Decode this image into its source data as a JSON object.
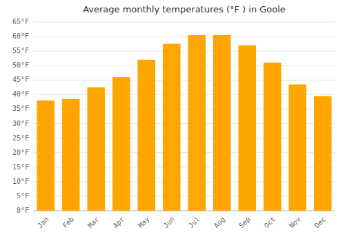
{
  "chart_data": {
    "type": "bar",
    "title": "Average monthly temperatures (°F ) in Goole",
    "categories": [
      "Jan",
      "Feb",
      "Mar",
      "Apr",
      "May",
      "Jun",
      "Jul",
      "Aug",
      "Sep",
      "Oct",
      "Nov",
      "Dec"
    ],
    "values": [
      38,
      38.5,
      42.5,
      46,
      52,
      57.5,
      60.5,
      60.5,
      57,
      51,
      43.5,
      39.5
    ],
    "color": "#FFA500",
    "ylim": [
      0,
      65
    ],
    "yticks": [
      {
        "value": 0,
        "label": "0°F"
      },
      {
        "value": 5,
        "label": "5°F"
      },
      {
        "value": 10,
        "label": "10°F"
      },
      {
        "value": 15,
        "label": "15°F"
      },
      {
        "value": 20,
        "label": "20°F"
      },
      {
        "value": 25,
        "label": "25°F"
      },
      {
        "value": 30,
        "label": "30°F"
      },
      {
        "value": 35,
        "label": "35°F"
      },
      {
        "value": 40,
        "label": "40°F"
      },
      {
        "value": 45,
        "label": "45°F"
      },
      {
        "value": 50,
        "label": "50°F"
      },
      {
        "value": 55,
        "label": "55°F"
      },
      {
        "value": 60,
        "label": "60°F"
      },
      {
        "value": 65,
        "label": "65°F"
      }
    ],
    "grid": true
  }
}
